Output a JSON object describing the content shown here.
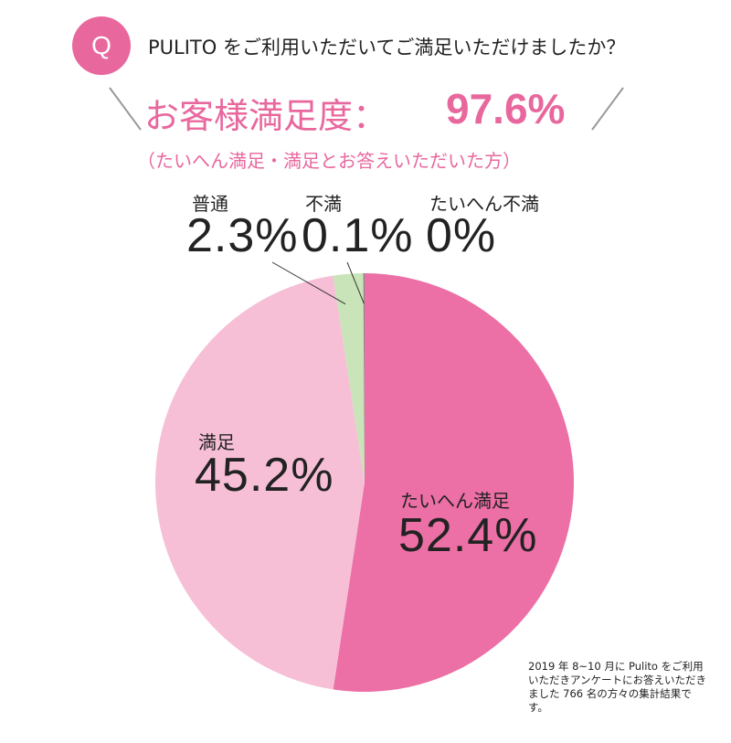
{
  "question": {
    "badge": "Q",
    "text": "PULITO をご利用いただいてご満足いただけましたか？"
  },
  "headline": {
    "label": "お客様満足度：",
    "value": "97.6%",
    "subtitle": "（たいへん満足・満足とお答えいただいた方）"
  },
  "colors": {
    "accent": "#e8689e",
    "very_satisfied": "#ec6fa5",
    "satisfied": "#f6bfd6",
    "normal": "#c8e4b8",
    "dissatisfied": "#8a8a8a",
    "headline_lines": "#999999"
  },
  "chart_data": {
    "type": "pie",
    "title": "",
    "slices": [
      {
        "name": "たいへん満足",
        "value": 52.4,
        "label": "52.4%"
      },
      {
        "name": "満足",
        "value": 45.2,
        "label": "45.2%"
      },
      {
        "name": "普通",
        "value": 2.3,
        "label": "2.3%"
      },
      {
        "name": "不満",
        "value": 0.1,
        "label": "0.1%"
      },
      {
        "name": "たいへん不満",
        "value": 0,
        "label": "0%"
      }
    ]
  },
  "footnote": "2019 年 8~10 月に Pulito をご利用いただきアンケートにお答えいただきました 766 名の方々の集計結果です。"
}
